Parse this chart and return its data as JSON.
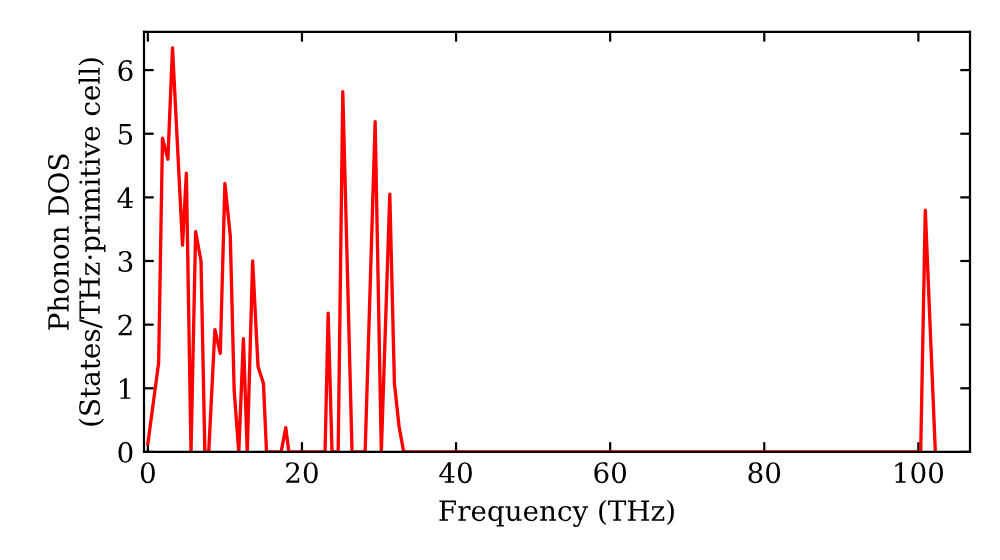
{
  "chart_data": {
    "type": "line",
    "xlabel": "Frequency (THz)",
    "ylabel": "Phonon DOS\n(States/THz·primitive cell)",
    "series": [
      {
        "color": "#ff0000",
        "x": [
          0,
          1.4,
          1.9,
          2.6,
          3.2,
          4.5,
          5.0,
          5.6,
          6.2,
          6.9,
          7.4,
          7.9,
          8.7,
          9.4,
          10.0,
          10.7,
          11.2,
          11.8,
          12.4,
          12.9,
          13.6,
          14.3,
          15.0,
          15.4,
          17.3,
          17.9,
          18.3,
          23.0,
          23.4,
          23.9,
          24.7,
          25.3,
          26.5,
          28.2,
          29.5,
          30.3,
          31.4,
          32.0,
          32.6,
          33.2,
          100.3,
          100.9,
          102.2
        ],
        "values": [
          0.13,
          1.4,
          4.93,
          4.6,
          6.35,
          3.25,
          4.38,
          0,
          3.46,
          3.0,
          0,
          0,
          1.92,
          1.55,
          4.22,
          3.39,
          0.97,
          0,
          1.78,
          0,
          3.0,
          1.34,
          1.08,
          0,
          0,
          0.38,
          0,
          0,
          2.18,
          0,
          0,
          5.66,
          0,
          0,
          5.19,
          0,
          4.05,
          1.08,
          0.4,
          0,
          0,
          3.8,
          0
        ]
      }
    ],
    "xlim": [
      -0.5,
      106.7
    ],
    "ylim": [
      0,
      6.6
    ],
    "xticks": [
      0,
      20,
      40,
      60,
      80,
      100
    ],
    "yticks": [
      0,
      1,
      2,
      3,
      4,
      5,
      6
    ],
    "grid": false,
    "legend": false,
    "marker": "none",
    "line_style": "solid"
  }
}
